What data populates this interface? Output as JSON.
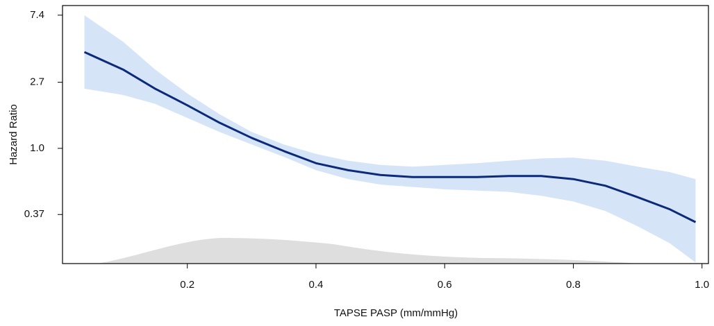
{
  "chart_data": {
    "type": "spline",
    "x_label": "TAPSE PASP (mm/mmHg)",
    "y_label": "Hazard Ratio",
    "x": [
      0.04,
      0.1,
      0.15,
      0.2,
      0.25,
      0.3,
      0.35,
      0.4,
      0.45,
      0.5,
      0.55,
      0.6,
      0.65,
      0.7,
      0.75,
      0.8,
      0.85,
      0.9,
      0.95,
      0.99
    ],
    "values": [
      4.25,
      3.27,
      2.45,
      1.91,
      1.47,
      1.17,
      0.96,
      0.8,
      0.72,
      0.67,
      0.65,
      0.65,
      0.65,
      0.66,
      0.66,
      0.63,
      0.57,
      0.48,
      0.4,
      0.33
    ],
    "ci_upper": [
      7.39,
      4.97,
      3.27,
      2.28,
      1.67,
      1.28,
      1.06,
      0.92,
      0.83,
      0.78,
      0.76,
      0.78,
      0.8,
      0.83,
      0.86,
      0.87,
      0.83,
      0.76,
      0.7,
      0.63
    ],
    "ci_lower": [
      2.45,
      2.23,
      1.95,
      1.58,
      1.28,
      1.06,
      0.88,
      0.72,
      0.63,
      0.58,
      0.56,
      0.54,
      0.53,
      0.52,
      0.49,
      0.45,
      0.39,
      0.31,
      0.24,
      0.18
    ],
    "color": "#0d2a7a",
    "band_color": "#d3e4f7",
    "xlim": [
      0.006,
      1.01
    ],
    "xticks": [
      0.2,
      0.4,
      0.6,
      0.8,
      {
        "value": 1,
        "label": "1.0"
      }
    ],
    "ylim": [
      0.177,
      8.55
    ],
    "yticks": [
      0.37,
      {
        "value": 1,
        "label": "1.0"
      },
      2.7,
      7.4
    ],
    "y_log": true
  }
}
